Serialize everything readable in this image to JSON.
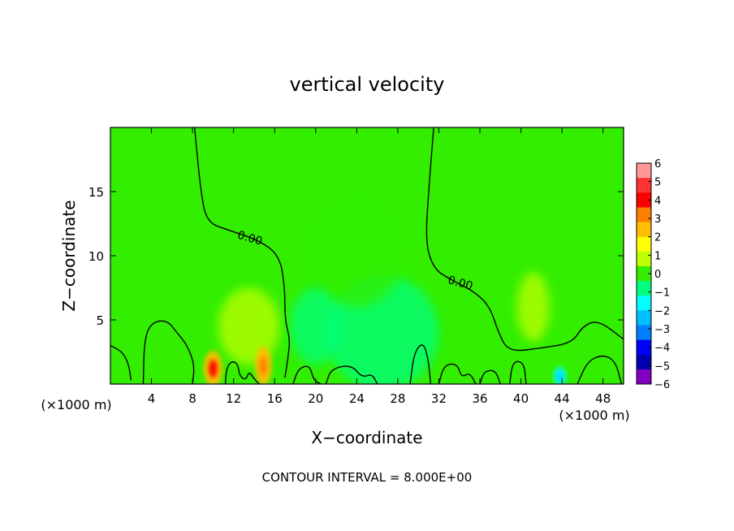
{
  "chart_data": {
    "type": "heatmap",
    "title": "vertical velocity",
    "xlabel": "X−coordinate",
    "ylabel": "Z−coordinate",
    "x_unit_left": "(×1000 m)",
    "x_unit_right": "(×1000 m)",
    "footer": "CONTOUR INTERVAL = 8.000E+00",
    "xlim": [
      0,
      50
    ],
    "ylim": [
      0,
      20
    ],
    "x_ticks": [
      4,
      8,
      12,
      16,
      20,
      24,
      28,
      32,
      36,
      40,
      44,
      48
    ],
    "y_ticks": [
      5,
      10,
      15
    ],
    "colorbar": {
      "labels": [
        "6",
        "5",
        "4",
        "3",
        "2",
        "1",
        "0",
        "−1",
        "−2",
        "−3",
        "−4",
        "−5",
        "−6"
      ],
      "colors": [
        "#ff9999",
        "#ff3333",
        "#ff0000",
        "#ff8000",
        "#ffbf00",
        "#ffff00",
        "#bfff00",
        "#33ee00",
        "#00ff80",
        "#00ffff",
        "#00bfff",
        "#0080ff",
        "#0000ff",
        "#0000b0",
        "#8000c0"
      ],
      "range": [
        -6,
        6
      ]
    },
    "contour_labels": [
      {
        "text": "0.00",
        "x": 13.5,
        "y": 11.1
      },
      {
        "text": "0.00",
        "x": 34.0,
        "y": 7.6
      }
    ],
    "contour_lines": [
      {
        "name": "contour-zero-left",
        "points": [
          [
            8.2,
            20
          ],
          [
            8.8,
            15
          ],
          [
            9.4,
            12.6
          ],
          [
            11.5,
            12.0
          ],
          [
            14.5,
            11.2
          ],
          [
            16.5,
            10.0
          ],
          [
            17.0,
            7.5
          ],
          [
            17.0,
            5.0
          ],
          [
            17.5,
            3.5
          ],
          [
            17.3,
            2.0
          ],
          [
            17.0,
            0.5
          ]
        ]
      },
      {
        "name": "contour-zero-right",
        "points": [
          [
            31.5,
            20
          ],
          [
            31.0,
            15
          ],
          [
            30.7,
            11.0
          ],
          [
            31.5,
            9.0
          ],
          [
            33.0,
            8.2
          ],
          [
            35.5,
            7.2
          ],
          [
            37.0,
            6.0
          ],
          [
            37.8,
            4.0
          ],
          [
            38.8,
            2.5
          ],
          [
            42.0,
            2.8
          ],
          [
            45.0,
            3.2
          ],
          [
            46.0,
            4.5
          ],
          [
            47.5,
            5.0
          ],
          [
            50.0,
            3.5
          ]
        ]
      },
      {
        "name": "contour-loop-left-edge",
        "points": [
          [
            0,
            3.0
          ],
          [
            1.2,
            2.5
          ],
          [
            1.8,
            1.5
          ],
          [
            2.0,
            0.3
          ]
        ]
      },
      {
        "name": "contour-loop-a",
        "points": [
          [
            3.2,
            0
          ],
          [
            3.3,
            3.5
          ],
          [
            4.0,
            4.8
          ],
          [
            5.5,
            5.0
          ],
          [
            6.5,
            4.0
          ],
          [
            7.5,
            3.0
          ],
          [
            8.2,
            1.5
          ],
          [
            8.0,
            0
          ]
        ]
      },
      {
        "name": "contour-loop-b",
        "points": [
          [
            11.2,
            0
          ],
          [
            11.3,
            1.2
          ],
          [
            11.8,
            1.8
          ],
          [
            12.4,
            1.6
          ],
          [
            12.6,
            0.6
          ],
          [
            13.2,
            0.3
          ],
          [
            13.5,
            1.0
          ],
          [
            14.0,
            0.4
          ],
          [
            14.5,
            0
          ]
        ]
      },
      {
        "name": "contour-loop-c",
        "points": [
          [
            17.8,
            0
          ],
          [
            18.3,
            1.2
          ],
          [
            19.4,
            1.5
          ],
          [
            19.8,
            0.3
          ],
          [
            20.5,
            0
          ]
        ]
      },
      {
        "name": "contour-loop-d",
        "points": [
          [
            21.0,
            0
          ],
          [
            21.5,
            1.2
          ],
          [
            23.5,
            1.5
          ],
          [
            24.5,
            0.5
          ],
          [
            25.5,
            0.8
          ],
          [
            26.0,
            0
          ]
        ]
      },
      {
        "name": "contour-loop-e",
        "points": [
          [
            29.2,
            0
          ],
          [
            29.6,
            2.5
          ],
          [
            30.5,
            3.3
          ],
          [
            31.0,
            1.8
          ],
          [
            31.2,
            0
          ]
        ]
      },
      {
        "name": "contour-loop-f",
        "points": [
          [
            32.0,
            0
          ],
          [
            32.5,
            1.5
          ],
          [
            33.8,
            1.6
          ],
          [
            34.2,
            0.5
          ],
          [
            35.0,
            0.9
          ],
          [
            35.6,
            0
          ]
        ]
      },
      {
        "name": "contour-loop-g",
        "points": [
          [
            36.0,
            0
          ],
          [
            36.4,
            1.0
          ],
          [
            37.5,
            1.1
          ],
          [
            38.0,
            0
          ]
        ]
      },
      {
        "name": "contour-loop-h",
        "points": [
          [
            38.9,
            0
          ],
          [
            39.2,
            1.8
          ],
          [
            40.3,
            1.7
          ],
          [
            40.5,
            0
          ]
        ]
      },
      {
        "name": "contour-loop-i",
        "points": [
          [
            45.5,
            0
          ],
          [
            46.5,
            1.8
          ],
          [
            48.0,
            2.3
          ],
          [
            49.2,
            1.8
          ],
          [
            49.8,
            0
          ]
        ]
      }
    ],
    "blobs": [
      {
        "name": "blob-max-1",
        "x": 10.0,
        "y": 1.2,
        "rx": 0.9,
        "ry": 1.4,
        "value": 3.0
      },
      {
        "name": "blob-max-2",
        "x": 14.9,
        "y": 1.4,
        "rx": 0.8,
        "ry": 1.5,
        "value": 2.5
      },
      {
        "name": "blob-pos-upper",
        "x": 13.5,
        "y": 4.5,
        "rx": 3.0,
        "ry": 3.0,
        "value": 1.0
      },
      {
        "name": "blob-neg-mid",
        "x": 20.0,
        "y": 4.5,
        "rx": 2.5,
        "ry": 3.0,
        "value": -1.2
      },
      {
        "name": "blob-neg-wide",
        "x": 26.5,
        "y": 4.0,
        "rx": 5.5,
        "ry": 4.5,
        "value": -0.9
      },
      {
        "name": "blob-pos-right",
        "x": 41.2,
        "y": 6.0,
        "rx": 1.6,
        "ry": 2.7,
        "value": 0.6
      },
      {
        "name": "blob-neg-43",
        "x": 43.8,
        "y": 0.6,
        "rx": 0.6,
        "ry": 0.7,
        "value": -1.5
      },
      {
        "name": "blob-neg-plume",
        "x": 24.0,
        "y": 10.0,
        "rx": 4.5,
        "ry": 4.0,
        "value": -0.4
      }
    ]
  }
}
